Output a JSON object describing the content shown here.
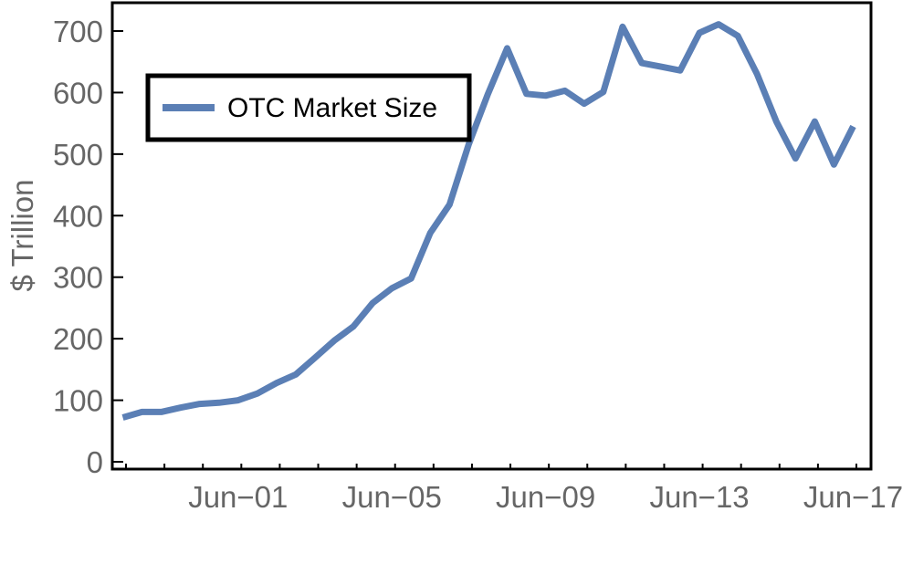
{
  "chart_data": {
    "type": "line",
    "title": "",
    "xlabel": "",
    "ylabel": "$ Trillion",
    "ylim": [
      0,
      750
    ],
    "yticks": [
      0,
      100,
      200,
      300,
      400,
      500,
      600,
      700
    ],
    "x_tick_labels": [
      "Jun−01",
      "Jun−05",
      "Jun−09",
      "Jun−13",
      "Jun−17"
    ],
    "x_tick_positions": [
      "2001-06",
      "2005-06",
      "2009-06",
      "2013-06",
      "2017-06"
    ],
    "legend": {
      "placement": "top-left",
      "entries": [
        "OTC Market Size"
      ]
    },
    "grid": false,
    "colors": {
      "series": "#5b7fb5",
      "frame": "#000000",
      "tick_text": "#666666"
    },
    "series": [
      {
        "name": "OTC Market Size",
        "x": [
          "1998-06",
          "1998-12",
          "1999-06",
          "1999-12",
          "2000-06",
          "2000-12",
          "2001-06",
          "2001-12",
          "2002-06",
          "2002-12",
          "2003-06",
          "2003-12",
          "2004-06",
          "2004-12",
          "2005-06",
          "2005-12",
          "2006-06",
          "2006-12",
          "2007-06",
          "2007-12",
          "2008-06",
          "2008-12",
          "2009-06",
          "2009-12",
          "2010-06",
          "2010-12",
          "2011-06",
          "2011-12",
          "2012-06",
          "2012-12",
          "2013-06",
          "2013-12",
          "2014-06",
          "2014-12",
          "2015-06",
          "2015-12",
          "2016-06",
          "2016-12",
          "2017-06"
        ],
        "values": [
          72,
          81,
          81,
          88,
          94,
          96,
          100,
          111,
          128,
          142,
          169,
          197,
          220,
          258,
          282,
          298,
          372,
          418,
          516,
          598,
          672,
          598,
          595,
          603,
          582,
          601,
          707,
          648,
          642,
          636,
          697,
          711,
          692,
          630,
          553,
          493,
          553,
          483,
          545
        ]
      }
    ]
  }
}
